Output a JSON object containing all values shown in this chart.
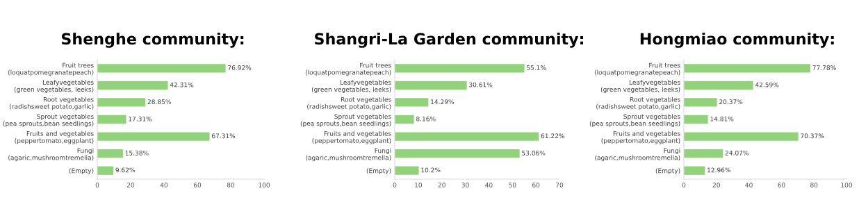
{
  "chart_data": [
    {
      "type": "bar",
      "orientation": "horizontal",
      "title": "Shenghe community:",
      "categories": [
        "Fruit trees\n(loquatpomegranatepeach)",
        "Leafyvegetables\n(green vegetables, leeks)",
        "Root vegetables\n(radishsweet potato,garlic)",
        "Sprout vegetables\n(pea sprouts,bean seedlings)",
        "Fruits and vegetables\n(peppertomato,eggplant)",
        "Fungi\n(agaric,mushroomtremella)",
        "(Empty)"
      ],
      "values": [
        76.92,
        42.31,
        28.85,
        17.31,
        67.31,
        15.38,
        9.62
      ],
      "value_labels": [
        "76.92%",
        "42.31%",
        "28.85%",
        "17.31%",
        "67.31%",
        "15.38%",
        "9.62%"
      ],
      "color": "#92d27a",
      "xlim": [
        0,
        100
      ],
      "xticks": [
        0,
        20,
        40,
        60,
        80,
        100
      ],
      "grid": false
    },
    {
      "type": "bar",
      "orientation": "horizontal",
      "title": "Shangri-La Garden community:",
      "categories": [
        "Fruit trees\n(loquatpomegranatepeach)",
        "Leafyvegetables\n(green vegetables, leeks)",
        "Root vegetables\n(radishsweet potato,garlic)",
        "Sprout vegetables\n(pea sprouts,bean seedlings)",
        "Fruits and vegetables\n(peppertomato,eggplant)",
        "Fungi\n(agaric,mushroomtremella)",
        "(Empty)"
      ],
      "values": [
        55.1,
        30.61,
        14.29,
        8.16,
        61.22,
        53.06,
        10.2
      ],
      "value_labels": [
        "55.1%",
        "30.61%",
        "14.29%",
        "8.16%",
        "61.22%",
        "53.06%",
        "10.2%"
      ],
      "color": "#92d27a",
      "xlim": [
        0,
        70
      ],
      "xticks": [
        0,
        10,
        20,
        30,
        40,
        50,
        60,
        70
      ],
      "grid": false
    },
    {
      "type": "bar",
      "orientation": "horizontal",
      "title": "Hongmiao community:",
      "categories": [
        "Fruit trees\n(loquatpomegranatepeach)",
        "Leafyvegetables\n(green vegetables, leeks)",
        "Root vegetables\n(radishsweet potato,garlic)",
        "Sprout vegetables\n(pea sprouts,bean seedlings)",
        "Fruits and vegetables\n(peppertomato,eggplant)",
        "Fungi\n(agaric,mushroomtremella)",
        "(Empty)"
      ],
      "values": [
        77.78,
        42.59,
        20.37,
        14.81,
        70.37,
        24.07,
        12.96
      ],
      "value_labels": [
        "77.78%",
        "42.59%",
        "20.37%",
        "14.81%",
        "70.37%",
        "24.07%",
        "12.96%"
      ],
      "color": "#92d27a",
      "xlim": [
        0,
        100
      ],
      "xticks": [
        0,
        20,
        40,
        60,
        80,
        100
      ],
      "grid": false
    }
  ]
}
